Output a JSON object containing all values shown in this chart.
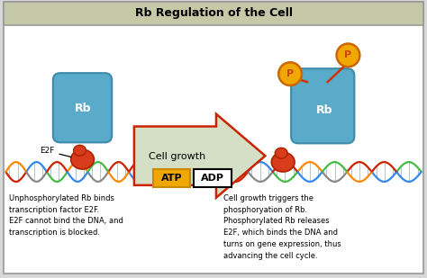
{
  "title": "Rb Regulation of the Cell",
  "title_bg": "#c5c9a8",
  "bg_color": "#ffffff",
  "outer_bg": "#d8d8d8",
  "left_text": "Unphosphorylated Rb binds\ntranscription factor E2F.\nE2F cannot bind the DNA, and\ntranscription is blocked.",
  "right_text": "Cell growth triggers the\nphosphoryation of Rb.\nPhosphorylated Rb releases\nE2F, which binds the DNA and\nturns on gene expression, thus\nadvancing the cell cycle.",
  "arrow_label": "Cell growth",
  "rb_color": "#5aabca",
  "rb_color_dark": "#3d8aaa",
  "e2f_color": "#d93c1a",
  "p_color": "#f0a800",
  "p_stem_color": "#cc3300",
  "atp_color": "#f0a800",
  "arrow_fill": "#d5dfc5",
  "arrow_outline": "#cc2200",
  "atp_border": "#cc8800",
  "dna_bg": "#e8f0f8"
}
